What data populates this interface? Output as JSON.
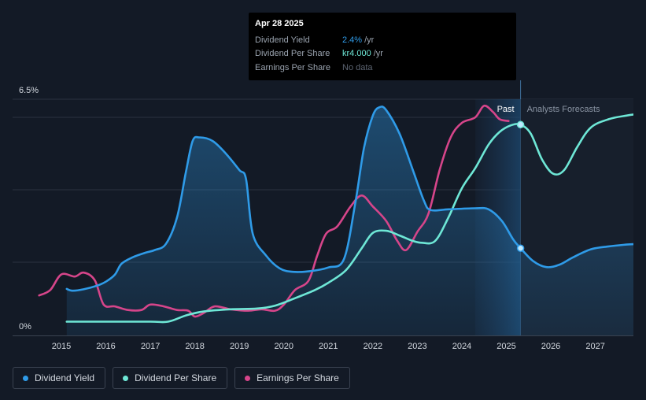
{
  "tooltip": {
    "date": "Apr 28 2025",
    "rows": [
      {
        "label": "Dividend Yield",
        "value": "2.4%",
        "unit": "/yr",
        "color": "#2f9be8"
      },
      {
        "label": "Dividend Per Share",
        "value": "kr4.000",
        "unit": "/yr",
        "color": "#6ee7d6"
      },
      {
        "label": "Earnings Per Share",
        "value": "No data",
        "unit": "",
        "color": "#5d6572"
      }
    ]
  },
  "sections": {
    "past": "Past",
    "forecast": "Analysts Forecasts"
  },
  "legend": [
    {
      "label": "Dividend Yield",
      "color": "#2f9be8"
    },
    {
      "label": "Dividend Per Share",
      "color": "#6ee7d6"
    },
    {
      "label": "Earnings Per Share",
      "color": "#d6458a"
    }
  ],
  "chart_data": {
    "type": "line",
    "x_ticks": [
      "2015",
      "2016",
      "2017",
      "2018",
      "2019",
      "2020",
      "2021",
      "2022",
      "2023",
      "2024",
      "2025",
      "2026",
      "2027"
    ],
    "y_ticks": [
      "0%",
      "6.5%"
    ],
    "ylim": [
      0,
      6.5
    ],
    "xlim": [
      2014.5,
      2028.0
    ],
    "forecast_start": 2025.32,
    "series": [
      {
        "name": "Dividend Yield",
        "color": "#2f9be8",
        "fill": true,
        "points": [
          [
            2015.12,
            1.28
          ],
          [
            2015.25,
            1.23
          ],
          [
            2015.5,
            1.27
          ],
          [
            2015.8,
            1.37
          ],
          [
            2016.0,
            1.48
          ],
          [
            2016.2,
            1.67
          ],
          [
            2016.35,
            1.97
          ],
          [
            2016.6,
            2.15
          ],
          [
            2016.9,
            2.28
          ],
          [
            2017.1,
            2.35
          ],
          [
            2017.35,
            2.52
          ],
          [
            2017.6,
            3.25
          ],
          [
            2017.8,
            4.5
          ],
          [
            2017.95,
            5.35
          ],
          [
            2018.1,
            5.45
          ],
          [
            2018.4,
            5.35
          ],
          [
            2018.7,
            5.0
          ],
          [
            2019.0,
            4.55
          ],
          [
            2019.15,
            4.3
          ],
          [
            2019.3,
            2.8
          ],
          [
            2019.6,
            2.2
          ],
          [
            2019.9,
            1.85
          ],
          [
            2020.2,
            1.75
          ],
          [
            2020.6,
            1.77
          ],
          [
            2021.0,
            1.87
          ],
          [
            2021.35,
            2.1
          ],
          [
            2021.6,
            3.6
          ],
          [
            2021.8,
            5.15
          ],
          [
            2022.0,
            6.05
          ],
          [
            2022.15,
            6.28
          ],
          [
            2022.3,
            6.2
          ],
          [
            2022.6,
            5.55
          ],
          [
            2022.9,
            4.55
          ],
          [
            2023.15,
            3.7
          ],
          [
            2023.3,
            3.45
          ],
          [
            2023.7,
            3.47
          ],
          [
            2024.3,
            3.5
          ],
          [
            2024.6,
            3.47
          ],
          [
            2024.9,
            3.15
          ],
          [
            2025.15,
            2.65
          ],
          [
            2025.32,
            2.4
          ],
          [
            2025.6,
            2.05
          ],
          [
            2025.9,
            1.88
          ],
          [
            2026.2,
            1.95
          ],
          [
            2026.5,
            2.15
          ],
          [
            2026.9,
            2.37
          ],
          [
            2027.3,
            2.45
          ],
          [
            2027.7,
            2.5
          ],
          [
            2028.0,
            2.52
          ]
        ]
      },
      {
        "name": "Dividend Per Share",
        "color": "#6ee7d6",
        "fill": false,
        "points": [
          [
            2015.12,
            0.38
          ],
          [
            2016.0,
            0.38
          ],
          [
            2017.0,
            0.38
          ],
          [
            2017.4,
            0.38
          ],
          [
            2017.8,
            0.55
          ],
          [
            2018.2,
            0.66
          ],
          [
            2018.8,
            0.72
          ],
          [
            2019.4,
            0.74
          ],
          [
            2019.8,
            0.82
          ],
          [
            2020.2,
            1.0
          ],
          [
            2020.7,
            1.25
          ],
          [
            2021.0,
            1.45
          ],
          [
            2021.4,
            1.8
          ],
          [
            2021.75,
            2.4
          ],
          [
            2022.0,
            2.82
          ],
          [
            2022.3,
            2.88
          ],
          [
            2022.6,
            2.75
          ],
          [
            2022.9,
            2.6
          ],
          [
            2023.1,
            2.55
          ],
          [
            2023.4,
            2.6
          ],
          [
            2023.7,
            3.25
          ],
          [
            2024.0,
            4.05
          ],
          [
            2024.3,
            4.6
          ],
          [
            2024.6,
            5.25
          ],
          [
            2024.85,
            5.6
          ],
          [
            2025.1,
            5.78
          ],
          [
            2025.32,
            5.8
          ],
          [
            2025.55,
            5.55
          ],
          [
            2025.8,
            4.85
          ],
          [
            2026.05,
            4.45
          ],
          [
            2026.3,
            4.55
          ],
          [
            2026.6,
            5.2
          ],
          [
            2026.9,
            5.72
          ],
          [
            2027.3,
            5.95
          ],
          [
            2027.7,
            6.05
          ],
          [
            2028.0,
            6.1
          ]
        ]
      },
      {
        "name": "Earnings Per Share",
        "color": "#d6458a",
        "fill": false,
        "points": [
          [
            2014.5,
            1.1
          ],
          [
            2014.75,
            1.25
          ],
          [
            2015.0,
            1.68
          ],
          [
            2015.3,
            1.62
          ],
          [
            2015.5,
            1.73
          ],
          [
            2015.75,
            1.52
          ],
          [
            2015.95,
            0.85
          ],
          [
            2016.2,
            0.8
          ],
          [
            2016.5,
            0.7
          ],
          [
            2016.8,
            0.7
          ],
          [
            2017.0,
            0.85
          ],
          [
            2017.3,
            0.8
          ],
          [
            2017.6,
            0.7
          ],
          [
            2017.85,
            0.68
          ],
          [
            2018.0,
            0.52
          ],
          [
            2018.2,
            0.62
          ],
          [
            2018.45,
            0.8
          ],
          [
            2018.8,
            0.72
          ],
          [
            2019.2,
            0.68
          ],
          [
            2019.5,
            0.72
          ],
          [
            2019.8,
            0.68
          ],
          [
            2020.0,
            0.85
          ],
          [
            2020.25,
            1.25
          ],
          [
            2020.55,
            1.5
          ],
          [
            2020.75,
            2.2
          ],
          [
            2020.95,
            2.8
          ],
          [
            2021.2,
            3.0
          ],
          [
            2021.5,
            3.55
          ],
          [
            2021.75,
            3.85
          ],
          [
            2022.0,
            3.55
          ],
          [
            2022.3,
            3.15
          ],
          [
            2022.55,
            2.6
          ],
          [
            2022.75,
            2.35
          ],
          [
            2023.0,
            2.85
          ],
          [
            2023.25,
            3.35
          ],
          [
            2023.5,
            4.55
          ],
          [
            2023.75,
            5.45
          ],
          [
            2024.0,
            5.85
          ],
          [
            2024.3,
            6.0
          ],
          [
            2024.5,
            6.32
          ],
          [
            2024.7,
            6.15
          ],
          [
            2024.85,
            5.95
          ],
          [
            2025.05,
            5.9
          ]
        ]
      }
    ],
    "tooltip_points": [
      {
        "series": "Dividend Yield",
        "x": 2025.32,
        "y": 2.4
      },
      {
        "series": "Dividend Per Share",
        "x": 2025.32,
        "y": 5.8
      }
    ]
  }
}
